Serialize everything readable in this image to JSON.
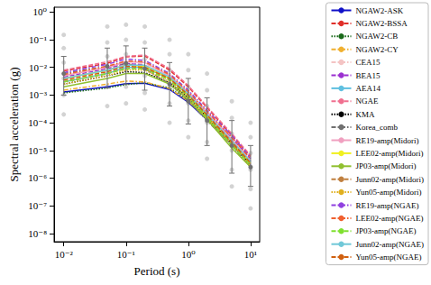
{
  "chart_data": {
    "type": "line",
    "xlabel": "Period (s)",
    "ylabel": "Spectral acceleration (g)",
    "log": true,
    "grid": false,
    "legend": "right",
    "xlim": [
      0.007,
      14
    ],
    "ylim": [
      5e-09,
      1.5
    ],
    "xticks": [
      {
        "value": 0.01,
        "label": "10⁻²"
      },
      {
        "value": 0.1,
        "label": "10⁻¹"
      },
      {
        "value": 1,
        "label": "10⁰"
      },
      {
        "value": 10,
        "label": "10¹"
      }
    ],
    "yticks": [
      {
        "value": 1e-08,
        "label": "10⁻⁸"
      },
      {
        "value": 1e-07,
        "label": "10⁻⁷"
      },
      {
        "value": 1e-06,
        "label": "10⁻⁶"
      },
      {
        "value": 1e-05,
        "label": "10⁻⁵"
      },
      {
        "value": 0.0001,
        "label": "10⁻⁴"
      },
      {
        "value": 0.001,
        "label": "10⁻³"
      },
      {
        "value": 0.01,
        "label": "10⁻²"
      },
      {
        "value": 0.1,
        "label": "10⁻¹"
      },
      {
        "value": 1,
        "label": "10⁰"
      }
    ],
    "x": [
      0.01,
      0.05,
      0.1,
      0.2,
      0.5,
      1,
      2,
      5,
      10
    ],
    "series": [
      {
        "type": "scatter",
        "color": "#c8c8c8",
        "marker": "circle",
        "x": [
          0.01,
          0.01,
          0.01,
          0.01,
          0.01,
          0.01,
          0.05,
          0.05,
          0.05,
          0.05,
          0.05,
          0.05,
          0.1,
          0.1,
          0.1,
          0.1,
          0.1,
          0.1,
          0.2,
          0.2,
          0.2,
          0.2,
          0.2,
          0.2,
          0.5,
          0.5,
          0.5,
          0.5,
          0.5,
          0.5,
          1,
          1,
          1,
          1,
          1,
          1,
          2,
          2,
          2,
          2,
          2,
          2,
          5,
          5,
          5,
          5,
          5,
          5,
          10,
          10,
          10,
          10,
          10,
          10
        ],
        "values": [
          0.15,
          0.05,
          0.015,
          0.004,
          0.001,
          0.0002,
          0.3,
          0.08,
          0.025,
          0.007,
          0.002,
          0.0004,
          0.35,
          0.1,
          0.03,
          0.008,
          0.002,
          0.0005,
          0.3,
          0.08,
          0.02,
          0.005,
          0.0012,
          0.0003,
          0.1,
          0.03,
          0.008,
          0.002,
          0.0005,
          0.0001,
          0.03,
          0.008,
          0.002,
          0.0005,
          0.00012,
          3e-05,
          0.006,
          0.0015,
          0.0004,
          0.0001,
          2e-05,
          5e-06,
          0.0006,
          0.00015,
          4e-05,
          1e-05,
          2e-06,
          5e-07,
          0.0001,
          3e-05,
          8e-06,
          2e-06,
          4e-07,
          8e-08
        ]
      },
      {
        "name": "NGAW2-ASK",
        "color": "#1010c8",
        "line_style": "solid",
        "values": [
          0.0013,
          0.002,
          0.0026,
          0.0027,
          0.0016,
          0.00055,
          0.00013,
          1.6e-05,
          3e-06
        ]
      },
      {
        "name": "NGAW2-BSSA",
        "color": "#e0302a",
        "line_style": "dashed",
        "values": [
          0.0075,
          0.014,
          0.024,
          0.026,
          0.008,
          0.002,
          0.00035,
          3.5e-05,
          6e-06
        ]
      },
      {
        "name": "NGAW2-CB",
        "color": "#1a6a1a",
        "line_style": "dotted",
        "values": [
          0.0012,
          0.0018,
          0.0024,
          0.0028,
          0.0018,
          0.00065,
          0.00015,
          1.8e-05,
          3e-06
        ]
      },
      {
        "name": "NGAW2-CY",
        "color": "#f0b030",
        "line_style": "dashdot",
        "values": [
          0.0015,
          0.0025,
          0.0032,
          0.003,
          0.0017,
          0.0006,
          0.00014,
          1.7e-05,
          3.2e-06
        ]
      },
      {
        "name": "CEA15",
        "color": "#f4c4c4",
        "line_style": "dashdot",
        "values": [
          0.004,
          0.008,
          0.013,
          0.014,
          0.005,
          0.0013,
          0.00025,
          2.5e-05,
          4.5e-06
        ]
      },
      {
        "name": "BEA15",
        "color": "#9b30d0",
        "line_style": "dashed",
        "values": [
          0.0045,
          0.009,
          0.014,
          0.012,
          0.004,
          0.0011,
          0.00022,
          2.8e-05,
          5e-06
        ]
      },
      {
        "name": "AEA14",
        "color": "#60c0e0",
        "line_style": "solid",
        "values": [
          0.003,
          0.006,
          0.01,
          0.01,
          0.004,
          0.001,
          0.0002,
          2.2e-05,
          4e-06
        ]
      },
      {
        "name": "NGAE",
        "color": "#f07090",
        "line_style": "dashed",
        "values": [
          0.008,
          0.016,
          0.025,
          0.028,
          0.009,
          0.0022,
          0.00038,
          4e-05,
          6.5e-06
        ]
      },
      {
        "name": "KMA",
        "color": "#000000",
        "line_style": "dotted",
        "values": [
          0.0025,
          0.005,
          0.007,
          0.0065,
          0.0028,
          0.0008,
          0.00016,
          1.8e-05,
          3e-06
        ]
      },
      {
        "name": "Korea_comb",
        "color": "#707070",
        "line_style": "dashdot",
        "marker": "circle",
        "values": [
          0.006,
          0.011,
          0.014,
          0.009,
          0.0025,
          0.0006,
          0.00012,
          1.5e-05,
          2.5e-06
        ],
        "error_low": [
          0.001,
          0.0018,
          0.0025,
          0.0015,
          0.0004,
          9e-05,
          1.5e-05,
          1.5e-06,
          5e-07
        ],
        "error_high": [
          0.025,
          0.05,
          0.06,
          0.05,
          0.015,
          0.004,
          0.0008,
          0.00012,
          1.5e-05
        ]
      },
      {
        "name": "RE19-amp(Midori)",
        "color": "#f0a0c0",
        "line_style": "solid",
        "values": [
          0.005,
          0.01,
          0.016,
          0.015,
          0.005,
          0.0012,
          0.00023,
          2.5e-05,
          4e-06
        ]
      },
      {
        "name": "LEE02-amp(Midori)",
        "color": "#f0f020",
        "line_style": "solid",
        "values": [
          0.004,
          0.008,
          0.012,
          0.011,
          0.004,
          0.001,
          0.00018,
          2e-05,
          3.5e-06
        ]
      },
      {
        "name": "JP03-amp(Midori)",
        "color": "#90c030",
        "line_style": "solid",
        "values": [
          0.002,
          0.004,
          0.006,
          0.006,
          0.0025,
          0.0007,
          0.00013,
          1.2e-05,
          2.5e-06
        ]
      },
      {
        "name": "Junn02-amp(Midori)",
        "color": "#c08040",
        "line_style": "dashed",
        "values": [
          0.003,
          0.006,
          0.009,
          0.009,
          0.0035,
          0.0009,
          0.00017,
          1.8e-05,
          3e-06
        ]
      },
      {
        "name": "Yun05-amp(Midori)",
        "color": "#e0b020",
        "line_style": "dotted",
        "values": [
          0.0025,
          0.005,
          0.008,
          0.008,
          0.003,
          0.0008,
          0.00015,
          1.6e-05,
          2.8e-06
        ]
      },
      {
        "name": "RE19-amp(NGAE)",
        "color": "#9040e0",
        "line_style": "dashdot",
        "values": [
          0.0065,
          0.013,
          0.02,
          0.018,
          0.006,
          0.0015,
          0.00028,
          3.5e-05,
          5.5e-06
        ]
      },
      {
        "name": "LEE02-amp(NGAE)",
        "color": "#f06030",
        "line_style": "dashdot",
        "values": [
          0.0055,
          0.011,
          0.017,
          0.016,
          0.0055,
          0.0013,
          0.00025,
          3e-05,
          5e-06
        ]
      },
      {
        "name": "JP03-amp(NGAE)",
        "color": "#80e030",
        "line_style": "dashed",
        "values": [
          0.003,
          0.006,
          0.009,
          0.009,
          0.0035,
          0.0009,
          0.00016,
          1.5e-05,
          3e-06
        ]
      },
      {
        "name": "Junn02-amp(NGAE)",
        "color": "#70c8d8",
        "line_style": "solid",
        "values": [
          0.004,
          0.008,
          0.012,
          0.012,
          0.0045,
          0.0011,
          0.0002,
          2.2e-05,
          4e-06
        ]
      },
      {
        "name": "Yun05-amp(NGAE)",
        "color": "#d06010",
        "line_style": "dashed",
        "values": [
          0.0035,
          0.007,
          0.011,
          0.01,
          0.004,
          0.001,
          0.00019,
          2e-05,
          3.5e-06
        ]
      }
    ]
  }
}
